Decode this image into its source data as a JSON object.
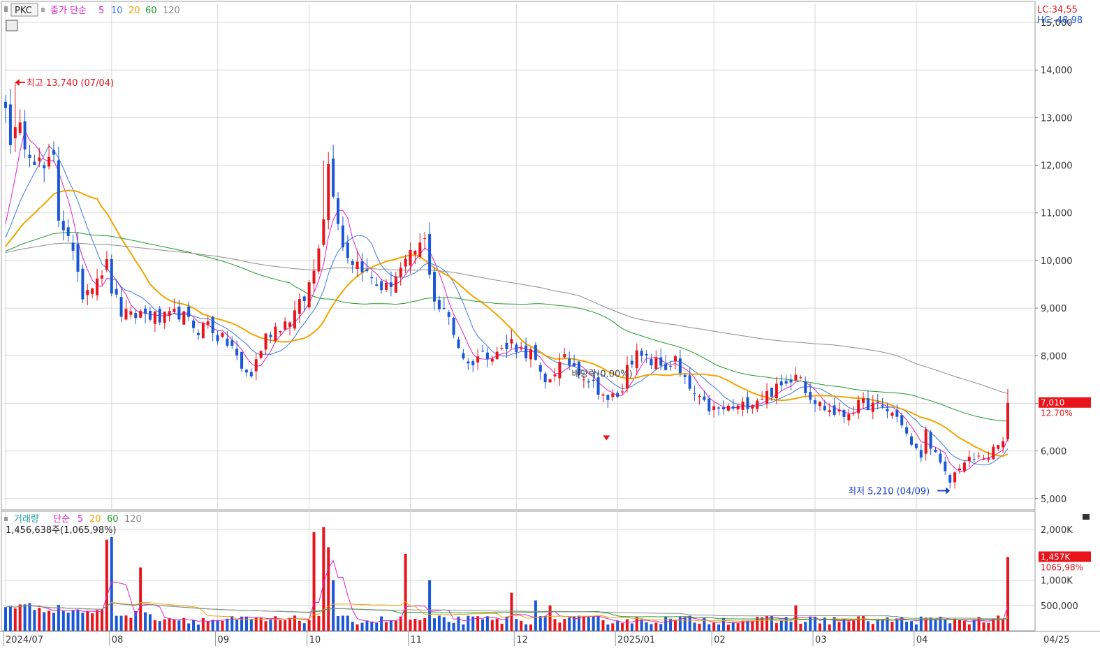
{
  "legend_top": {
    "symbol": "PKC",
    "prefix": "종가 단순",
    "ma": [
      {
        "label": "5",
        "color": "#e020c8"
      },
      {
        "label": "10",
        "color": "#3c78e6"
      },
      {
        "label": "20",
        "color": "#f0a500"
      },
      {
        "label": "60",
        "color": "#1e9a2a"
      },
      {
        "label": "120",
        "color": "#8c8c8c"
      }
    ]
  },
  "legend_bottom": {
    "title": "거래량",
    "prefix": "단순",
    "ma": [
      {
        "label": "5",
        "color": "#e020c8"
      },
      {
        "label": "20",
        "color": "#f0a500"
      },
      {
        "label": "60",
        "color": "#1e9a2a"
      },
      {
        "label": "120",
        "color": "#8c8c8c"
      }
    ],
    "volume_text": "1,456,638주(1,065,98%)"
  },
  "corner": {
    "lc": "LC:34,55",
    "hc": "HC:-48,98"
  },
  "colors": {
    "up": "#e8141c",
    "down": "#1a57d6",
    "grid": "#d8d8d8",
    "axis_text": "#333333"
  },
  "chart_data": [
    {
      "type": "candlestick",
      "ylim": [
        4850,
        15250
      ],
      "yticks": [
        "5,000",
        "6,000",
        "7,000",
        "8,000",
        "9,000",
        "10,000",
        "11,000",
        "12,000",
        "13,000",
        "14,000",
        "15,000"
      ],
      "ytick_values": [
        5000,
        6000,
        7000,
        8000,
        9000,
        10000,
        11000,
        12000,
        13000,
        14000,
        15000
      ],
      "x_labels": [
        "2024/07",
        "08",
        "09",
        "10",
        "11",
        "12",
        "2025/01",
        "02",
        "03",
        "04",
        "04/25"
      ],
      "x_label_index": [
        0,
        22,
        44,
        63,
        84,
        106,
        127,
        147,
        168,
        189,
        213
      ],
      "bars": 209,
      "anchors_close": [
        [
          0,
          13200
        ],
        [
          1,
          12600
        ],
        [
          3,
          12700
        ],
        [
          6,
          12200
        ],
        [
          8,
          11900
        ],
        [
          10,
          12100
        ],
        [
          11,
          10900
        ],
        [
          13,
          10600
        ],
        [
          15,
          9600
        ],
        [
          16,
          9300
        ],
        [
          19,
          9700
        ],
        [
          21,
          9900
        ],
        [
          22,
          9400
        ],
        [
          24,
          8900
        ],
        [
          26,
          8800
        ],
        [
          28,
          8900
        ],
        [
          30,
          8850
        ],
        [
          32,
          8750
        ],
        [
          34,
          8800
        ],
        [
          36,
          8900
        ],
        [
          38,
          8700
        ],
        [
          40,
          8550
        ],
        [
          42,
          8700
        ],
        [
          44,
          8400
        ],
        [
          47,
          8200
        ],
        [
          49,
          7700
        ],
        [
          51,
          7600
        ],
        [
          52,
          7900
        ],
        [
          54,
          8400
        ],
        [
          56,
          8600
        ],
        [
          58,
          8700
        ],
        [
          60,
          8900
        ],
        [
          62,
          9200
        ],
        [
          64,
          9800
        ],
        [
          66,
          11000
        ],
        [
          67,
          12000
        ],
        [
          68,
          11500
        ],
        [
          70,
          10300
        ],
        [
          72,
          10000
        ],
        [
          74,
          9900
        ],
        [
          75,
          9700
        ],
        [
          77,
          9500
        ],
        [
          79,
          9400
        ],
        [
          81,
          9700
        ],
        [
          83,
          9900
        ],
        [
          85,
          10200
        ],
        [
          87,
          10400
        ],
        [
          89,
          9200
        ],
        [
          90,
          9000
        ],
        [
          92,
          8800
        ],
        [
          94,
          8200
        ],
        [
          96,
          7800
        ],
        [
          98,
          8000
        ],
        [
          100,
          8050
        ],
        [
          102,
          8100
        ],
        [
          104,
          8150
        ],
        [
          105,
          8300
        ],
        [
          107,
          8100
        ],
        [
          109,
          8050
        ],
        [
          110,
          7850
        ],
        [
          111,
          7550
        ],
        [
          112,
          7400
        ],
        [
          114,
          7700
        ],
        [
          116,
          7900
        ],
        [
          118,
          7800
        ],
        [
          120,
          7600
        ],
        [
          122,
          7400
        ],
        [
          124,
          7200
        ],
        [
          125,
          7000
        ],
        [
          126,
          7150
        ],
        [
          128,
          7200
        ],
        [
          129,
          7900
        ],
        [
          131,
          8000
        ],
        [
          133,
          7900
        ],
        [
          135,
          7850
        ],
        [
          137,
          7750
        ],
        [
          139,
          7900
        ],
        [
          140,
          7600
        ],
        [
          142,
          7300
        ],
        [
          144,
          7050
        ],
        [
          146,
          6900
        ],
        [
          148,
          6850
        ],
        [
          150,
          6900
        ],
        [
          152,
          6900
        ],
        [
          154,
          7000
        ],
        [
          156,
          7100
        ],
        [
          158,
          7200
        ],
        [
          160,
          7300
        ],
        [
          162,
          7400
        ],
        [
          164,
          7700
        ],
        [
          165,
          7600
        ],
        [
          166,
          7300
        ],
        [
          168,
          7050
        ],
        [
          170,
          6900
        ],
        [
          172,
          6800
        ],
        [
          174,
          6750
        ],
        [
          176,
          6900
        ],
        [
          178,
          7000
        ],
        [
          180,
          6950
        ],
        [
          182,
          6900
        ],
        [
          184,
          6800
        ],
        [
          186,
          6600
        ],
        [
          188,
          6100
        ],
        [
          190,
          5900
        ],
        [
          191,
          6400
        ],
        [
          193,
          5900
        ],
        [
          195,
          5500
        ],
        [
          196,
          5350
        ],
        [
          198,
          5700
        ],
        [
          200,
          5800
        ],
        [
          202,
          5850
        ],
        [
          204,
          5900
        ],
        [
          206,
          6100
        ],
        [
          207,
          6200
        ],
        [
          208,
          7010
        ]
      ],
      "high": {
        "label": "최고 13,740 (07/04)",
        "value": 13740,
        "bar": 2
      },
      "low": {
        "label": "최저 5,210 (04/09)",
        "value": 5210,
        "bar": 196
      },
      "event": {
        "label": "배당락(0.00%)",
        "bar": 125
      },
      "last": {
        "value_label": "7,010",
        "pct_label": "12.70%",
        "value": 7010
      }
    },
    {
      "type": "bar",
      "name": "volume",
      "ylim": [
        0,
        2250000
      ],
      "yticks": [
        "500,000",
        "1,000K",
        "1,457K",
        "2,000K"
      ],
      "ytick_values": [
        500000,
        1000000,
        1457000,
        2000000
      ],
      "spikes": [
        [
          21,
          1800000
        ],
        [
          22,
          1850000
        ],
        [
          28,
          1250000
        ],
        [
          64,
          1950000
        ],
        [
          66,
          2050000
        ],
        [
          67,
          1650000
        ],
        [
          68,
          1000000
        ],
        [
          83,
          1520000
        ],
        [
          88,
          1000000
        ],
        [
          105,
          750000
        ],
        [
          110,
          600000
        ],
        [
          113,
          500000
        ],
        [
          164,
          500000
        ],
        [
          208,
          1456638
        ]
      ],
      "last": {
        "value_label": "1,457K",
        "pct_label": "1065,98%",
        "value": 1456638
      }
    }
  ]
}
